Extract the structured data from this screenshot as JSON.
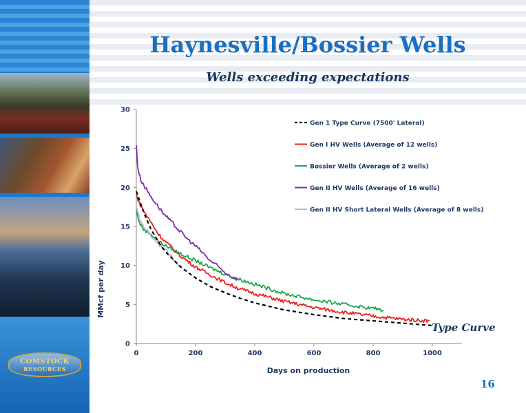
{
  "slide": {
    "title": "Haynesville/Bossier Wells",
    "subtitle": "Wells exceeding expectations",
    "page_number": "16",
    "logo_text": [
      "COMSTOCK",
      "RESOURCES"
    ]
  },
  "colors": {
    "title": "#1a6fc0",
    "subtitle": "#17365d",
    "axis_text": "#1f3864",
    "sidebar": "#1f79c8"
  },
  "chart_data": {
    "type": "line",
    "title": "",
    "xlabel": "Days on production",
    "ylabel": "MMcf per day",
    "xlim": [
      0,
      1100
    ],
    "ylim": [
      0,
      30
    ],
    "x_ticks": [
      0,
      200,
      400,
      600,
      800,
      1000
    ],
    "y_ticks": [
      0,
      5,
      10,
      15,
      20,
      25,
      30
    ],
    "grid": false,
    "legend_position": "top-right",
    "annotation": "Type Curve",
    "series": [
      {
        "name": "Gen 1 Type Curve (7500' Lateral)",
        "color": "#000000",
        "dash": true,
        "x": [
          0,
          25,
          50,
          75,
          100,
          150,
          200,
          250,
          300,
          350,
          400,
          500,
          600,
          700,
          800,
          900,
          1000
        ],
        "y": [
          19.5,
          16.8,
          14.6,
          13.0,
          11.7,
          9.8,
          8.4,
          7.3,
          6.5,
          5.8,
          5.2,
          4.3,
          3.7,
          3.2,
          2.9,
          2.6,
          2.3
        ]
      },
      {
        "name": "Gen I HV Wells (Average of 12 wells)",
        "color": "#e8231f",
        "dash": false,
        "x": [
          0,
          10,
          25,
          50,
          75,
          100,
          150,
          200,
          250,
          300,
          350,
          400,
          500,
          600,
          700,
          800,
          900,
          990
        ],
        "y": [
          19.0,
          18.0,
          17.0,
          15.5,
          14.0,
          13.0,
          11.2,
          9.8,
          8.8,
          7.8,
          7.0,
          6.4,
          5.4,
          4.6,
          4.0,
          3.5,
          3.1,
          2.9
        ]
      },
      {
        "name": "Bossier Wells (Average of 2 wells)",
        "color": "#1da84a",
        "dash": false,
        "x": [
          0,
          10,
          25,
          50,
          75,
          100,
          150,
          200,
          250,
          300,
          350,
          400,
          500,
          600,
          700,
          800,
          835
        ],
        "y": [
          17.0,
          15.5,
          14.6,
          14.0,
          13.1,
          12.5,
          11.5,
          10.6,
          9.7,
          8.9,
          8.2,
          7.6,
          6.4,
          5.6,
          5.0,
          4.5,
          4.3
        ]
      },
      {
        "name": "Gen II HV Wells (Average of 16 wells)",
        "color": "#7b2f9e",
        "dash": false,
        "x": [
          0,
          5,
          15,
          30,
          50,
          75,
          100,
          125,
          150,
          175,
          200,
          225,
          250,
          275,
          300,
          325,
          345
        ],
        "y": [
          25.5,
          22.5,
          21.0,
          20.0,
          18.8,
          17.5,
          16.3,
          15.3,
          14.3,
          13.3,
          12.5,
          11.6,
          10.6,
          9.9,
          9.1,
          8.5,
          8.2
        ]
      },
      {
        "name": "Gen II HV Short Lateral Wells (Average of 8 wells)",
        "color": "#a9b8d9",
        "dash": false,
        "x": [
          0,
          10,
          25,
          50,
          75,
          100,
          125,
          150
        ],
        "y": [
          17.5,
          16.0,
          15.0,
          13.8,
          12.8,
          11.9,
          10.8,
          10.0
        ]
      }
    ]
  }
}
